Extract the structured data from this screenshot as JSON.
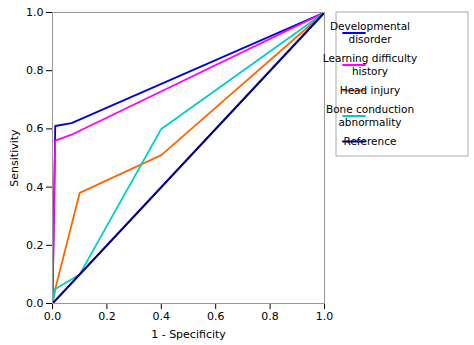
{
  "chart_data": {
    "type": "line",
    "xlabel": "1 - Specificity",
    "ylabel": "Sensitivity",
    "xlim": [
      0.0,
      1.0
    ],
    "ylim": [
      0.0,
      1.0
    ],
    "xticks": [
      {
        "value": 0.0,
        "label": "0.0"
      },
      0.2,
      0.4,
      0.6,
      0.8,
      {
        "value": 1.0,
        "label": "1.0"
      }
    ],
    "yticks": [
      {
        "value": 0.0,
        "label": "0.0"
      },
      0.2,
      0.4,
      0.6,
      0.8,
      {
        "value": 1.0,
        "label": "1.0"
      }
    ],
    "legend": "right",
    "series": [
      {
        "name": "Developmental\ndisorder",
        "color": "#0000dd",
        "x": [
          0.0,
          0.01,
          0.07,
          1.0
        ],
        "values": [
          0.0,
          0.61,
          0.62,
          1.0
        ]
      },
      {
        "name": "Learning difficulty\nhistory",
        "color": "#ff00ff",
        "x": [
          0.0,
          0.01,
          0.07,
          1.0
        ],
        "values": [
          0.0,
          0.56,
          0.58,
          1.0
        ]
      },
      {
        "name": "Head injury",
        "color": "#ff6600",
        "x": [
          0.0,
          0.01,
          0.1,
          0.4,
          1.0
        ],
        "values": [
          0.0,
          0.05,
          0.38,
          0.51,
          1.0
        ]
      },
      {
        "name": "Bone conduction\nabnormality",
        "color": "#00cccc",
        "x": [
          0.0,
          0.01,
          0.1,
          0.4,
          1.0
        ],
        "values": [
          0.0,
          0.05,
          0.1,
          0.6,
          1.0
        ]
      },
      {
        "name": "Reference",
        "color": "#000080",
        "x": [
          0.0,
          1.0
        ],
        "values": [
          0.0,
          1.0
        ]
      }
    ]
  }
}
